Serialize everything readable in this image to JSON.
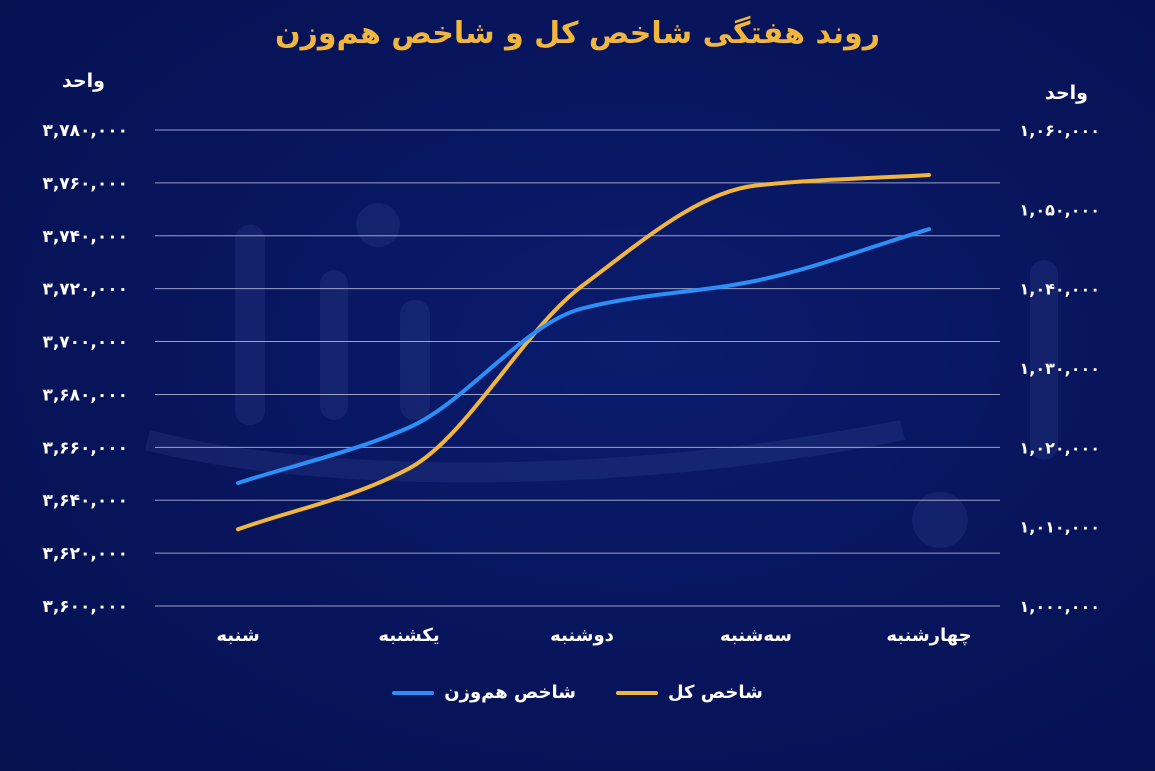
{
  "chart_data": {
    "type": "line",
    "title": "روند هفتگی شاخص کل و شاخص هم‌وزن",
    "categories": [
      "شنبه",
      "یکشنبه",
      "دوشنبه",
      "سه‌شنبه",
      "چهارشنبه"
    ],
    "series": [
      {
        "name": "شاخص کل",
        "axis": "left",
        "color": "#f2b63c",
        "values": [
          3629000,
          3652000,
          3721000,
          3759000,
          3763000
        ]
      },
      {
        "name": "شاخص هم‌وزن",
        "axis": "right",
        "color": "#2a8ff7",
        "values": [
          1015500,
          1022500,
          1037500,
          1041000,
          1047500
        ]
      }
    ],
    "y_left": {
      "label": "واحد",
      "ylim": [
        3600000,
        3780000
      ],
      "ticks": [
        "۳,۷۸۰,۰۰۰",
        "۳,۷۶۰,۰۰۰",
        "۳,۷۴۰,۰۰۰",
        "۳,۷۲۰,۰۰۰",
        "۳,۷۰۰,۰۰۰",
        "۳,۶۸۰,۰۰۰",
        "۳,۶۶۰,۰۰۰",
        "۳,۶۴۰,۰۰۰",
        "۳,۶۲۰,۰۰۰",
        "۳,۶۰۰,۰۰۰"
      ]
    },
    "y_right": {
      "label": "واحد",
      "ylim": [
        1000000,
        1060000
      ],
      "ticks": [
        "۱,۰۶۰,۰۰۰",
        "۱,۰۵۰,۰۰۰",
        "۱,۰۴۰,۰۰۰",
        "۱,۰۳۰,۰۰۰",
        "۱,۰۲۰,۰۰۰",
        "۱,۰۱۰,۰۰۰",
        "۱,۰۰۰,۰۰۰"
      ]
    },
    "grid": true,
    "legend_position": "bottom-center"
  },
  "colors": {
    "background": "#07145a",
    "title": "#f2b63c",
    "grid": "#c9cfe6"
  }
}
